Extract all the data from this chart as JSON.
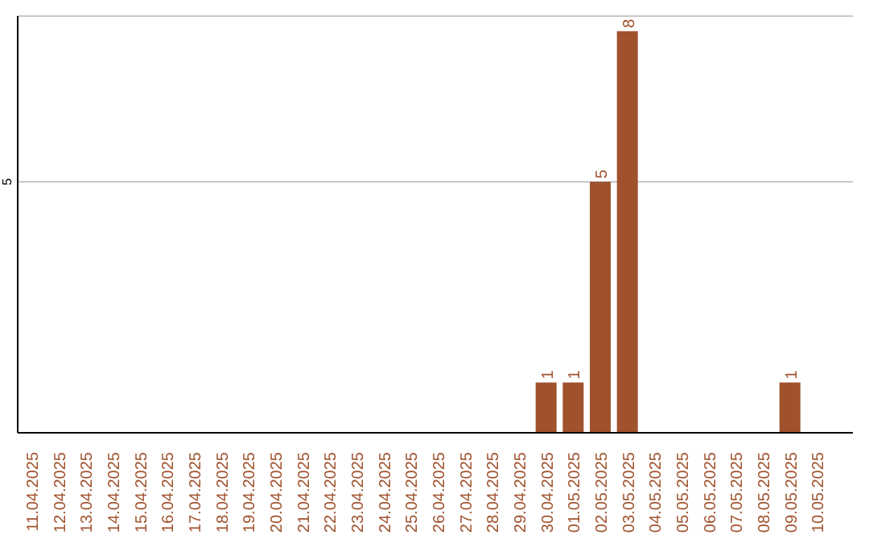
{
  "chart_data": {
    "type": "bar",
    "categories": [
      "11.04.2025",
      "12.04.2025",
      "13.04.2025",
      "14.04.2025",
      "15.04.2025",
      "16.04.2025",
      "17.04.2025",
      "18.04.2025",
      "19.04.2025",
      "20.04.2025",
      "21.04.2025",
      "22.04.2025",
      "23.04.2025",
      "24.04.2025",
      "25.04.2025",
      "26.04.2025",
      "27.04.2025",
      "28.04.2025",
      "29.04.2025",
      "30.04.2025",
      "01.05.2025",
      "02.05.2025",
      "03.05.2025",
      "04.05.2025",
      "05.05.2025",
      "06.05.2025",
      "07.05.2025",
      "08.05.2025",
      "09.05.2025",
      "10.05.2025"
    ],
    "values": [
      null,
      null,
      null,
      null,
      null,
      null,
      null,
      null,
      null,
      null,
      null,
      null,
      null,
      null,
      null,
      null,
      null,
      null,
      null,
      1,
      1,
      5,
      8,
      null,
      null,
      null,
      null,
      null,
      1,
      null
    ],
    "data_labels": true,
    "color": "#a0522d",
    "ylim": [
      0,
      8.3
    ],
    "yticks": [
      5
    ],
    "grid": "y"
  }
}
